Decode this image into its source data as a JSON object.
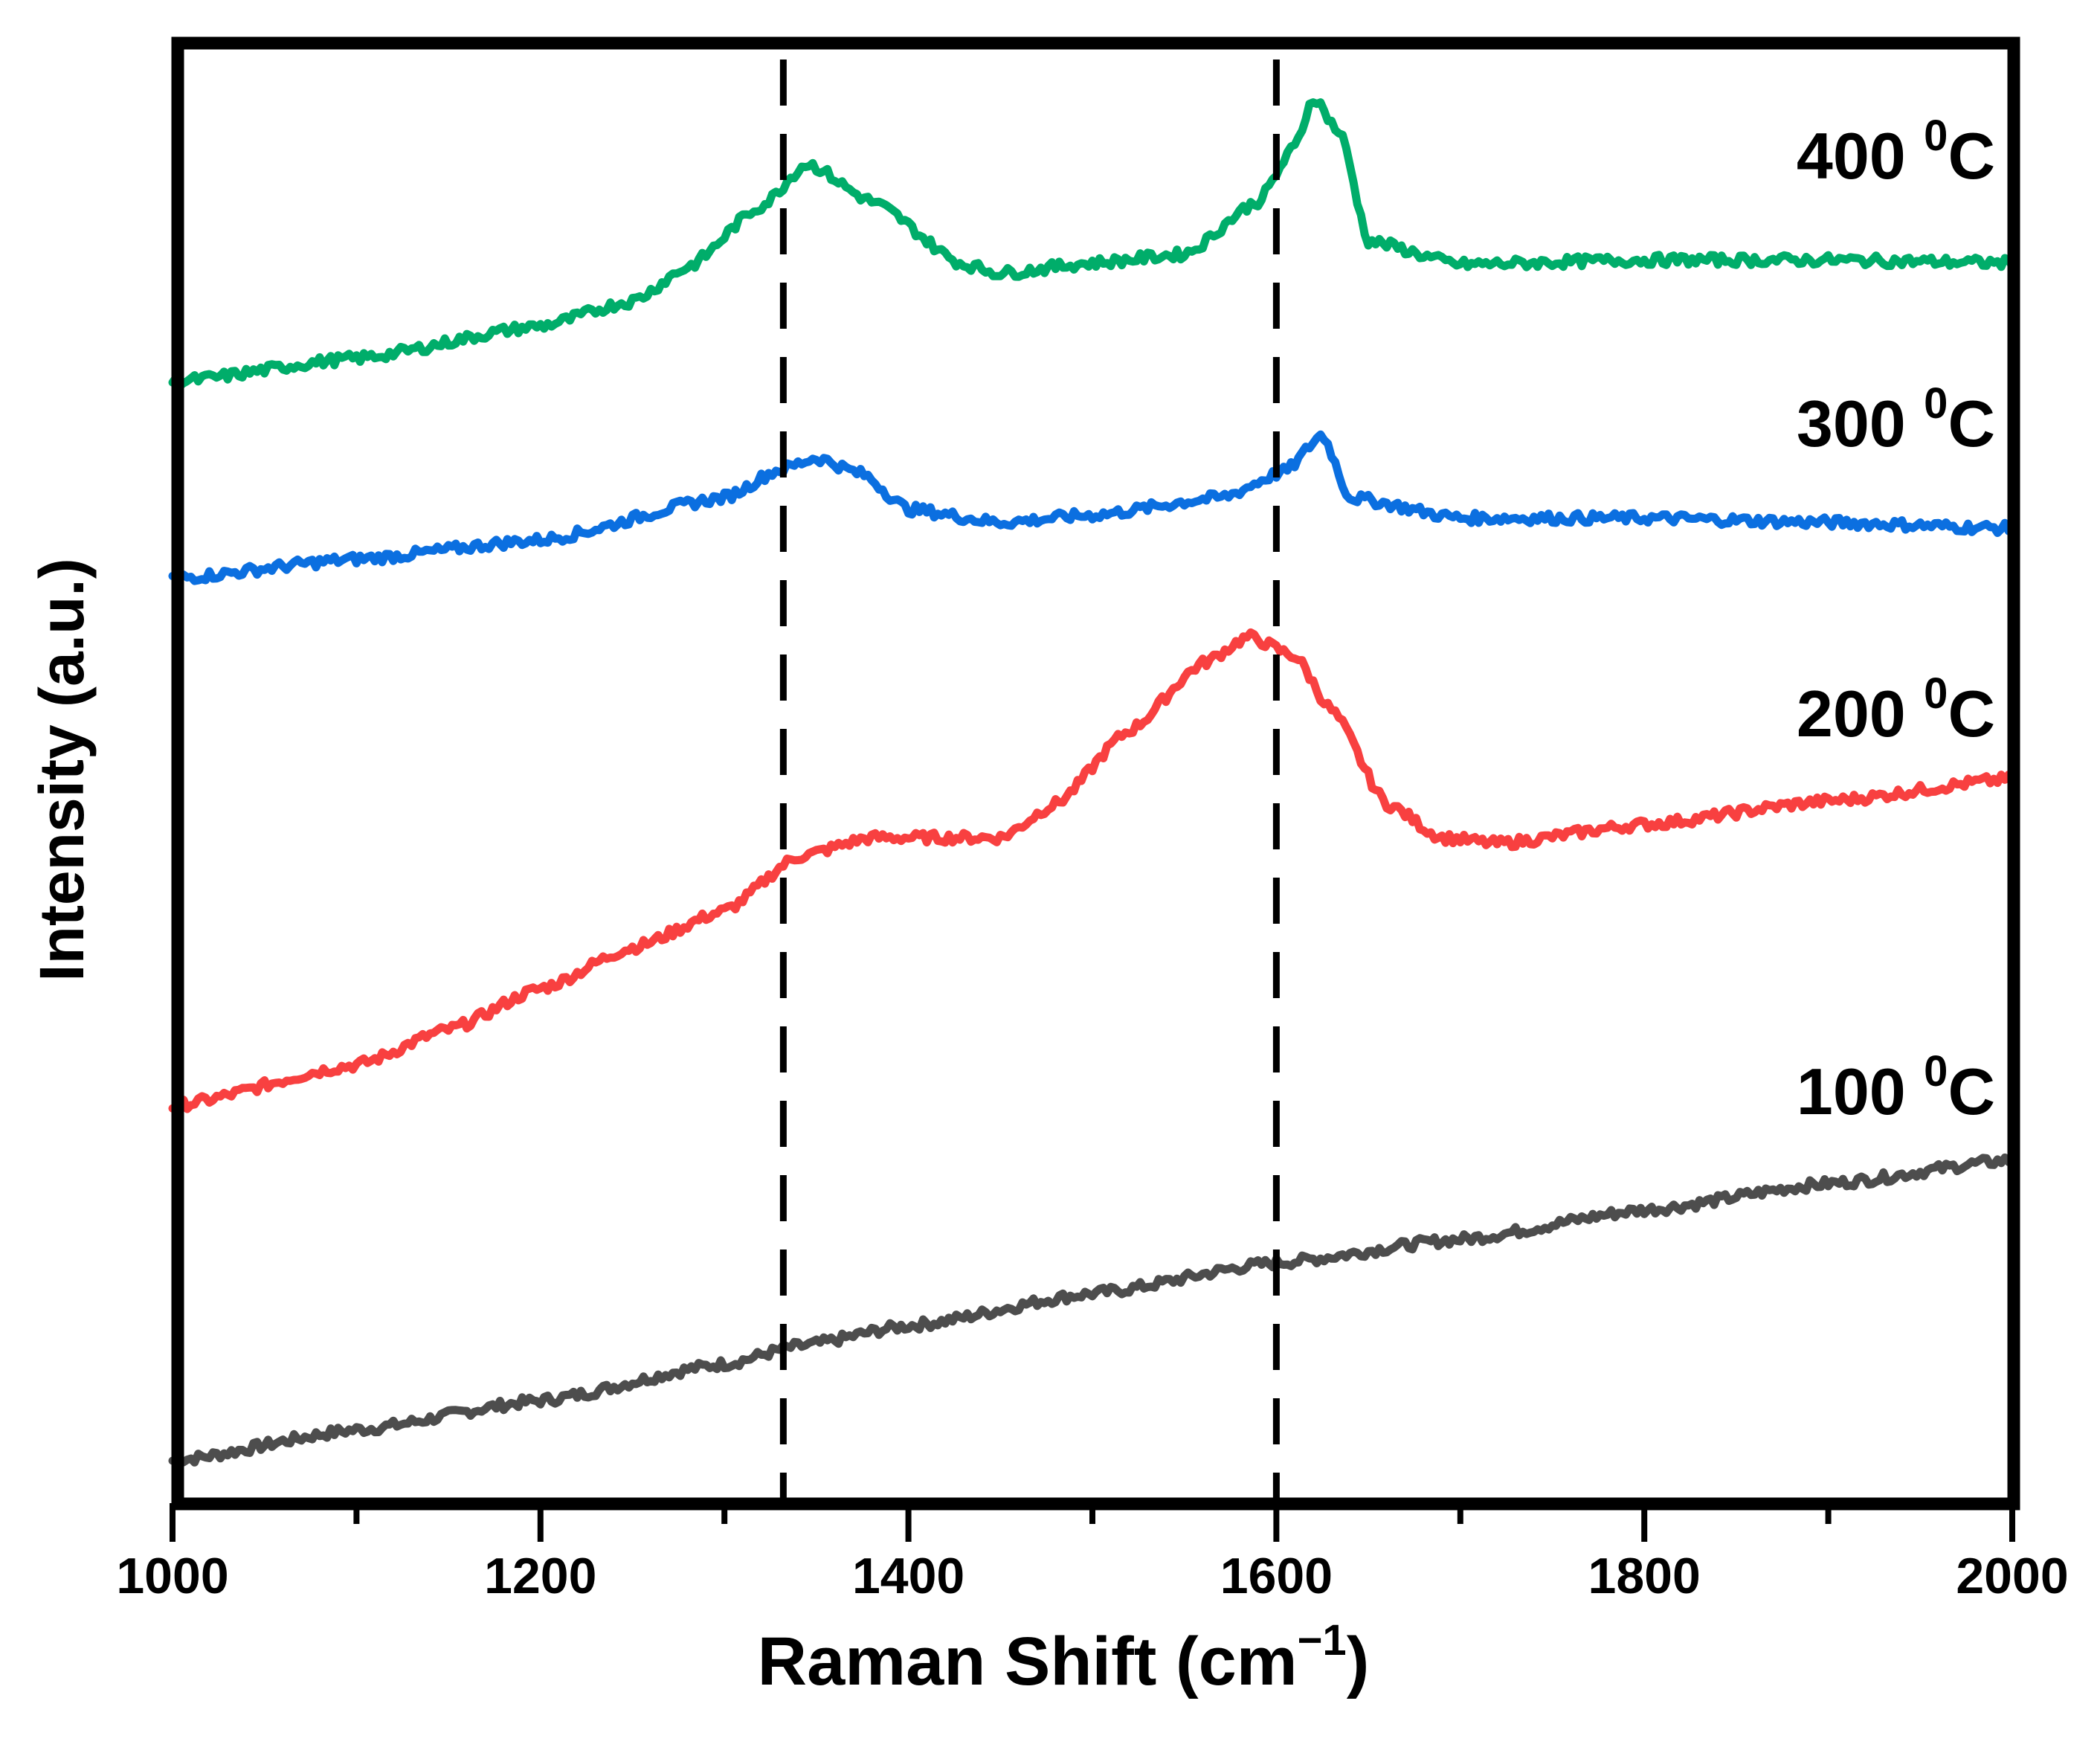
{
  "chart_data": {
    "type": "line",
    "title": "",
    "xlabel": "Raman Shift (cm",
    "xlabel_sup": "−1",
    "xlabel_close": ")",
    "ylabel": "Intensity (a.u.)",
    "xlim": [
      1000,
      2000
    ],
    "ylim": [
      0,
      100
    ],
    "y_ticks_shown": false,
    "grid": false,
    "x_ticks": [
      "1000",
      "1200",
      "1400",
      "1600",
      "1800",
      "2000"
    ],
    "x_minor_ticks": [
      1100,
      1300,
      1500,
      1700,
      1900
    ],
    "reference_lines": [
      1332,
      1600
    ],
    "reference_line_style": "dashed",
    "series": [
      {
        "name": "100",
        "label_sup": "0",
        "label_unit": "C",
        "color": "#4d4d4d",
        "x": [
          1000,
          1100,
          1200,
          1300,
          1340,
          1400,
          1500,
          1600,
          1700,
          1800,
          1900,
          2000
        ],
        "y": [
          2.9,
          5.0,
          7.0,
          9.5,
          10.7,
          12.1,
          14.3,
          16.4,
          18.0,
          20.0,
          21.8,
          23.4
        ]
      },
      {
        "name": "200",
        "label_sup": "0",
        "label_unit": "C",
        "color": "#f84040",
        "x": [
          1000,
          1100,
          1150,
          1200,
          1250,
          1300,
          1340,
          1380,
          1450,
          1480,
          1520,
          1560,
          1585,
          1610,
          1630,
          1660,
          1690,
          1720,
          1800,
          1900,
          2000
        ],
        "y": [
          27.1,
          29.9,
          32.3,
          35.1,
          37.9,
          40.4,
          44.1,
          45.4,
          45.4,
          47.7,
          52.7,
          57.3,
          59.1,
          57.8,
          54.1,
          47.7,
          45.4,
          45.0,
          46.3,
          47.9,
          49.4
        ]
      },
      {
        "name": "300",
        "label_sup": "0",
        "label_unit": "C",
        "color": "#0b6fe0",
        "x": [
          1000,
          1100,
          1200,
          1300,
          1330,
          1350,
          1375,
          1400,
          1450,
          1500,
          1570,
          1605,
          1625,
          1640,
          1700,
          1800,
          1900,
          2000
        ],
        "y": [
          63.1,
          64.4,
          65.7,
          68.6,
          70.5,
          71.3,
          70.2,
          67.8,
          66.9,
          67.4,
          68.6,
          70.4,
          72.9,
          68.6,
          67.2,
          67.2,
          66.9,
          66.5
        ]
      },
      {
        "name": "400",
        "label_sup": "0",
        "label_unit": "C",
        "color": "#00ad6a",
        "x": [
          1000,
          1100,
          1200,
          1250,
          1280,
          1320,
          1345,
          1380,
          1430,
          1450,
          1500,
          1550,
          1590,
          1610,
          1620,
          1635,
          1650,
          1700,
          1800,
          1900,
          2000
        ],
        "y": [
          76.5,
          78.1,
          80.3,
          82.0,
          84.3,
          88.5,
          91.4,
          88.8,
          84.5,
          83.9,
          84.6,
          85.2,
          88.8,
          92.5,
          95.9,
          93.4,
          86.1,
          84.5,
          84.8,
          84.8,
          84.6
        ]
      }
    ]
  }
}
